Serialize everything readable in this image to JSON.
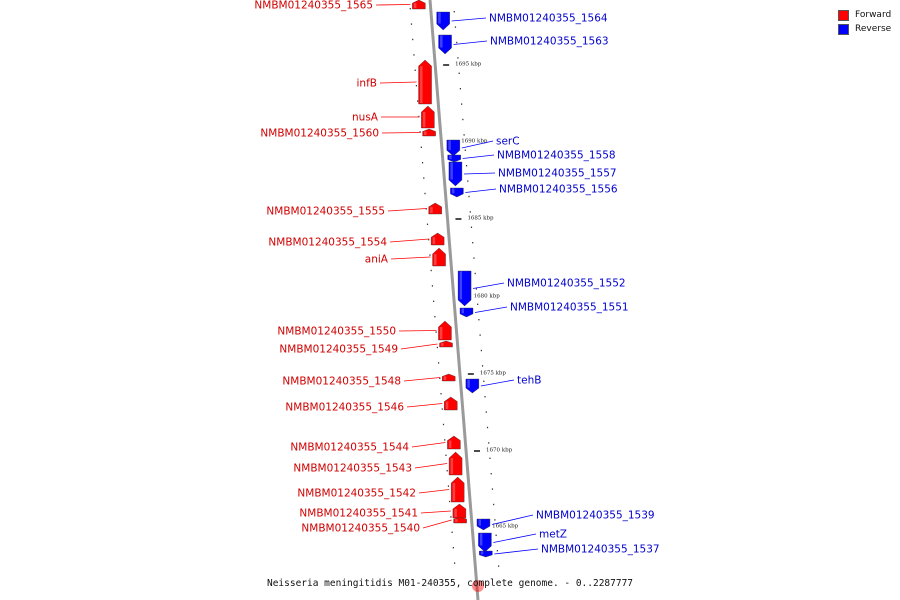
{
  "legend": {
    "forward": {
      "label": "Forward",
      "color": "#ff0000"
    },
    "reverse": {
      "label": "Reverse",
      "color": "#0000ff"
    }
  },
  "caption": "Neisseria meningitidis M01-240355, complete genome. - 0..2287777",
  "scale_labels": [
    "1695 kbp",
    "1690 kbp",
    "1685 kbp",
    "1680 kbp",
    "1675 kbp",
    "1670 kbp",
    "1665 kbp"
  ],
  "genes": [
    {
      "label": "NMBM01240355_1565",
      "strand": "forward"
    },
    {
      "label": "NMBM01240355_1564",
      "strand": "reverse"
    },
    {
      "label": "NMBM01240355_1563",
      "strand": "reverse"
    },
    {
      "label": "infB",
      "strand": "forward"
    },
    {
      "label": "nusA",
      "strand": "forward"
    },
    {
      "label": "NMBM01240355_1560",
      "strand": "forward"
    },
    {
      "label": "serC",
      "strand": "reverse"
    },
    {
      "label": "NMBM01240355_1558",
      "strand": "reverse"
    },
    {
      "label": "NMBM01240355_1557",
      "strand": "reverse"
    },
    {
      "label": "NMBM01240355_1556",
      "strand": "reverse"
    },
    {
      "label": "NMBM01240355_1555",
      "strand": "forward"
    },
    {
      "label": "NMBM01240355_1554",
      "strand": "forward"
    },
    {
      "label": "aniA",
      "strand": "forward"
    },
    {
      "label": "NMBM01240355_1552",
      "strand": "reverse"
    },
    {
      "label": "NMBM01240355_1551",
      "strand": "reverse"
    },
    {
      "label": "NMBM01240355_1550",
      "strand": "forward"
    },
    {
      "label": "NMBM01240355_1549",
      "strand": "forward"
    },
    {
      "label": "NMBM01240355_1548",
      "strand": "forward"
    },
    {
      "label": "tehB",
      "strand": "reverse"
    },
    {
      "label": "NMBM01240355_1546",
      "strand": "forward"
    },
    {
      "label": "NMBM01240355_1544",
      "strand": "forward"
    },
    {
      "label": "NMBM01240355_1543",
      "strand": "forward"
    },
    {
      "label": "NMBM01240355_1542",
      "strand": "forward"
    },
    {
      "label": "NMBM01240355_1541",
      "strand": "forward"
    },
    {
      "label": "NMBM01240355_1540",
      "strand": "forward"
    },
    {
      "label": "NMBM01240355_1539",
      "strand": "reverse"
    },
    {
      "label": "metZ",
      "strand": "reverse"
    },
    {
      "label": "NMBM01240355_1537",
      "strand": "reverse"
    }
  ]
}
